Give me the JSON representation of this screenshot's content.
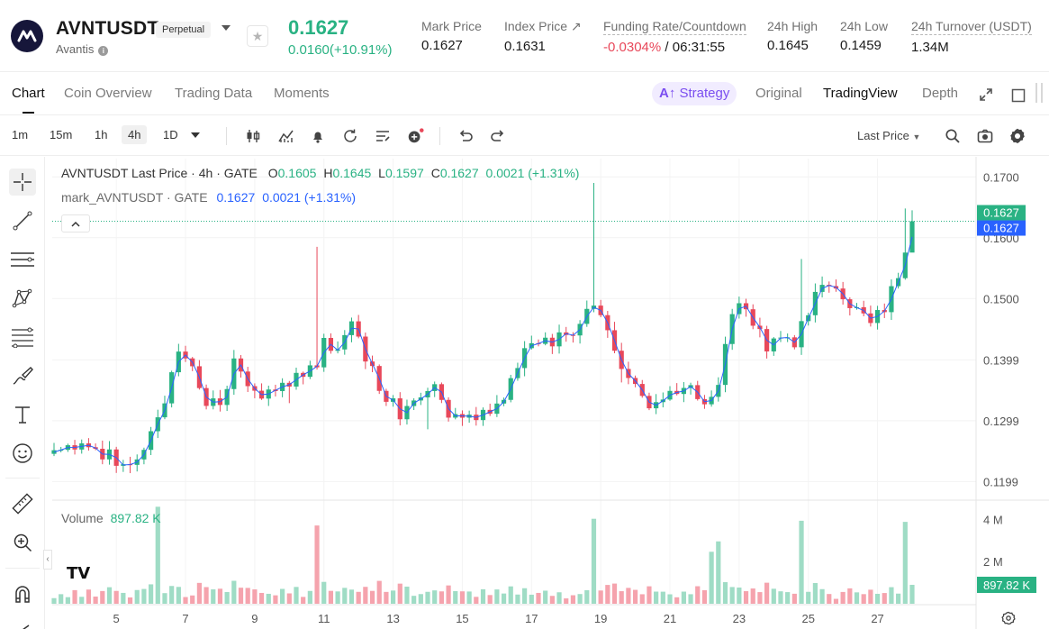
{
  "header": {
    "symbol": "AVNTUSDT",
    "contract_type": "Perpetual",
    "name": "Avantis",
    "last_price": "0.1627",
    "change": "0.0160(+10.91%)",
    "stats": [
      {
        "label": "Mark Price",
        "value": "0.1627"
      },
      {
        "label": "Index Price ↗",
        "value": "0.1631"
      },
      {
        "label": "Funding Rate/Countdown",
        "value_rate": "-0.0304%",
        "value_countdown": " / 06:31:55"
      },
      {
        "label": "24h High",
        "value": "0.1645"
      },
      {
        "label": "24h Low",
        "value": "0.1459"
      },
      {
        "label": "24h Turnover (USDT)",
        "value": "1.34M"
      }
    ]
  },
  "tabs": {
    "chart": "Chart",
    "coin_overview": "Coin Overview",
    "trading_data": "Trading Data",
    "moments": "Moments",
    "strategy": "Strategy",
    "original": "Original",
    "tradingview": "TradingView",
    "depth": "Depth"
  },
  "toolbar": {
    "timeframes": [
      "1m",
      "15m",
      "1h",
      "4h",
      "1D"
    ],
    "selected_timeframe": "4h",
    "price_type": "Last Price"
  },
  "legend": {
    "main_title": "AVNTUSDT Last Price · 4h · GATE",
    "o_label": "O",
    "o_value": "0.1605",
    "h_label": "H",
    "h_value": "0.1645",
    "l_label": "L",
    "l_value": "0.1597",
    "c_label": "C",
    "c_value": "0.1627",
    "change": "0.0021 (+1.31%)",
    "mark_title": "mark_AVNTUSDT · GATE",
    "mark_price": "0.1627",
    "mark_change": "0.0021 (+1.31%)",
    "volume_label": "Volume",
    "volume_value": "897.82 K"
  },
  "chart_data": {
    "type": "candlestick",
    "interval": "4h",
    "price_axis_ticks": [
      "0.1700",
      "0.1600",
      "0.1500",
      "0.1399",
      "0.1299",
      "0.1199"
    ],
    "price_axis_values": [
      0.17,
      0.16,
      0.15,
      0.1399,
      0.1299,
      0.1199
    ],
    "ylim": [
      0.117,
      0.173
    ],
    "volume_axis_ticks": [
      "4 M",
      "2 M"
    ],
    "volume_axis_values": [
      4000000,
      2000000
    ],
    "volume_ylim": [
      0,
      4700000
    ],
    "x_ticks": [
      "5",
      "7",
      "9",
      "11",
      "13",
      "15",
      "17",
      "19",
      "21",
      "23",
      "25",
      "27"
    ],
    "x_tick_index": [
      9,
      19,
      29,
      39,
      49,
      59,
      69,
      79,
      89,
      99,
      109,
      119
    ],
    "last_price_tag": "0.1627",
    "mark_price_tag": "0.1627",
    "last_volume_tag": "897.82 K",
    "up_color": "#29b283",
    "down_color": "#e8485a",
    "mark_line_color": "#2962ff",
    "waypoints": [
      [
        0,
        0.1262
      ],
      [
        3,
        0.1255
      ],
      [
        8,
        0.124
      ],
      [
        10,
        0.1222
      ],
      [
        12,
        0.1232
      ],
      [
        15,
        0.1295
      ],
      [
        17,
        0.138
      ],
      [
        18,
        0.141
      ],
      [
        20,
        0.1385
      ],
      [
        22,
        0.133
      ],
      [
        24,
        0.133
      ],
      [
        26,
        0.1395
      ],
      [
        28,
        0.1355
      ],
      [
        30,
        0.1345
      ],
      [
        34,
        0.1352
      ],
      [
        36,
        0.138
      ],
      [
        38,
        0.139
      ],
      [
        39,
        0.1445
      ],
      [
        41,
        0.1405
      ],
      [
        43,
        0.146
      ],
      [
        45,
        0.14
      ],
      [
        47,
        0.1355
      ],
      [
        50,
        0.131
      ],
      [
        52,
        0.1335
      ],
      [
        54,
        0.135
      ],
      [
        55,
        0.135
      ],
      [
        57,
        0.13
      ],
      [
        59,
        0.13
      ],
      [
        63,
        0.132
      ],
      [
        65,
        0.134
      ],
      [
        67,
        0.1395
      ],
      [
        69,
        0.1435
      ],
      [
        71,
        0.143
      ],
      [
        74,
        0.144
      ],
      [
        76,
        0.146
      ],
      [
        78,
        0.149
      ],
      [
        79,
        0.147
      ],
      [
        80,
        0.145
      ],
      [
        82,
        0.138
      ],
      [
        84,
        0.135
      ],
      [
        86,
        0.1325
      ],
      [
        88,
        0.134
      ],
      [
        90,
        0.135
      ],
      [
        92,
        0.135
      ],
      [
        94,
        0.133
      ],
      [
        96,
        0.135
      ],
      [
        98,
        0.148
      ],
      [
        100,
        0.149
      ],
      [
        101,
        0.146
      ],
      [
        103,
        0.142
      ],
      [
        105,
        0.144
      ],
      [
        107,
        0.143
      ],
      [
        109,
        0.148
      ],
      [
        110,
        0.151
      ],
      [
        112,
        0.152
      ],
      [
        114,
        0.151
      ],
      [
        116,
        0.148
      ],
      [
        118,
        0.1465
      ],
      [
        120,
        0.148
      ],
      [
        122,
        0.154
      ],
      [
        124,
        0.1627
      ]
    ],
    "spikes": {
      "38": 0.1585,
      "78": 0.169,
      "108": 0.1565,
      "123": 0.1648
    },
    "dips": {
      "34": 0.1328,
      "54": 0.1285,
      "82": 0.1362
    }
  },
  "misc": {
    "tv_logo": "TV",
    "collapse_arrow": "^",
    "left_collapse_arrow": "‹"
  }
}
